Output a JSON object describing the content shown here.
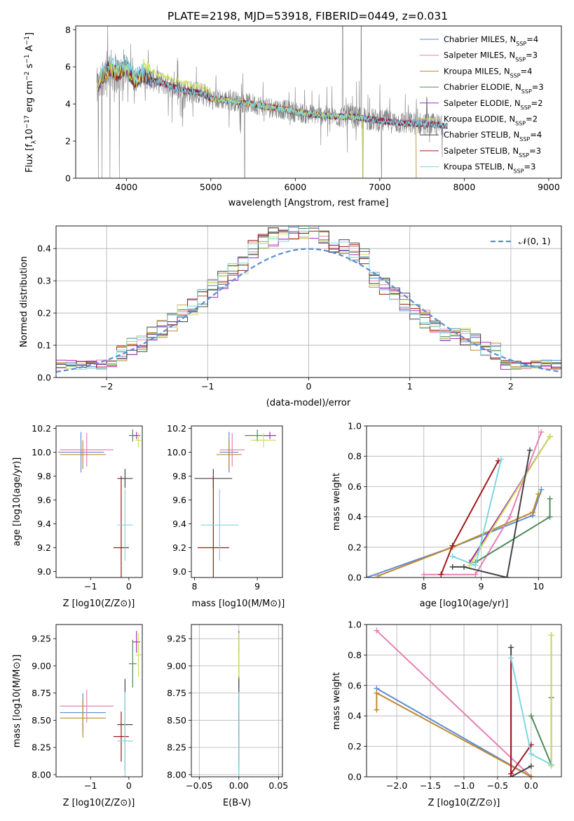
{
  "title": "PLATE=2198, MJD=53918, FIBERID=0449, z=0.031",
  "colors": [
    "#5b8bd6",
    "#e680b4",
    "#c08a2e",
    "#4f8a5a",
    "#a330b8",
    "#cfe05a",
    "#444444",
    "#a01818",
    "#7fd6e0"
  ],
  "chart_data": [
    {
      "type": "line",
      "name": "spectrum",
      "xlabel": "wavelength [Angstrom, rest frame]",
      "ylabel": "Flux [f_λ 10^-17 erg cm^-2 s^-1 A^-1]",
      "ylabel_parts": [
        "Flux [f",
        "λ",
        "10",
        "−17",
        " erg cm",
        "−2",
        " s",
        "−1",
        " A",
        "−1",
        "]"
      ],
      "xlim": [
        3400,
        9150
      ],
      "ylim": [
        0,
        8.2
      ],
      "xticks": [
        4000,
        5000,
        6000,
        7000,
        8000,
        9000
      ],
      "yticks": [
        0,
        2,
        4,
        6,
        8
      ],
      "legend_position": "upper right",
      "legend": [
        {
          "label": "Chabrier MILES, N",
          "sub": "SSP",
          "tail": "=4"
        },
        {
          "label": "Salpeter MILES, N",
          "sub": "SSP",
          "tail": "=3"
        },
        {
          "label": "Kroupa MILES, N",
          "sub": "SSP",
          "tail": "=4"
        },
        {
          "label": "Chabrier ELODIE, N",
          "sub": "SSP",
          "tail": "=3"
        },
        {
          "label": "Salpeter ELODIE, N",
          "sub": "SSP",
          "tail": "=2"
        },
        {
          "label": "Kroupa ELODIE, N",
          "sub": "SSP",
          "tail": "=2"
        },
        {
          "label": "Chabrier STELIB, N",
          "sub": "SSP",
          "tail": "=4"
        },
        {
          "label": "Salpeter STELIB, N",
          "sub": "SSP",
          "tail": "=3"
        },
        {
          "label": "Kroupa STELIB, N",
          "sub": "SSP",
          "tail": "=3"
        }
      ],
      "model_continuum": {
        "x": [
          3650,
          3700,
          3800,
          3900,
          4000,
          4100,
          4200,
          4300,
          4500,
          4700,
          4861,
          5000,
          5200,
          5500,
          5800,
          6100,
          6400,
          6700,
          7000,
          7300,
          7400,
          7600,
          7800
        ],
        "y": [
          4.8,
          5.4,
          5.9,
          5.6,
          6.0,
          5.2,
          5.6,
          5.3,
          5.0,
          4.7,
          4.6,
          4.3,
          4.2,
          4.0,
          3.75,
          3.5,
          3.35,
          3.3,
          3.1,
          2.95,
          2.95,
          2.9,
          2.8
        ]
      }
    },
    {
      "type": "step",
      "name": "residual-histogram",
      "xlabel": "(data-model)/error",
      "ylabel": "Normed distribution",
      "xlim": [
        -2.5,
        2.5
      ],
      "ylim": [
        0,
        0.47
      ],
      "xticks": [
        -2,
        -1,
        0,
        1,
        2
      ],
      "yticks": [
        0.0,
        0.1,
        0.2,
        0.3,
        0.4
      ],
      "legend": "𝒩(0, 1)",
      "legend_position": "upper right",
      "bin_width": 0.1,
      "bin_centers": [
        -2.45,
        -2.35,
        -2.25,
        -2.15,
        -2.05,
        -1.95,
        -1.85,
        -1.75,
        -1.65,
        -1.55,
        -1.45,
        -1.35,
        -1.25,
        -1.15,
        -1.05,
        -0.95,
        -0.85,
        -0.75,
        -0.65,
        -0.55,
        -0.45,
        -0.35,
        -0.25,
        -0.15,
        -0.05,
        0.05,
        0.15,
        0.25,
        0.35,
        0.45,
        0.55,
        0.65,
        0.75,
        0.85,
        0.95,
        1.05,
        1.15,
        1.25,
        1.35,
        1.45,
        1.55,
        1.65,
        1.75,
        1.85,
        1.95,
        2.05,
        2.15,
        2.25,
        2.35,
        2.45
      ],
      "reference_curve": "normal pdf, mean 0, std 1"
    },
    {
      "type": "errorbar",
      "name": "age-vs-Z",
      "xlabel": "Z [log10(Z/Z⊙)]",
      "ylabel": "age [log10(age/yr)]",
      "xlim": [
        -1.9,
        0.35
      ],
      "ylim": [
        8.95,
        10.22
      ],
      "xticks": [
        -1,
        0
      ],
      "yticks": [
        9.0,
        9.2,
        9.4,
        9.6,
        9.8,
        10.0,
        10.2
      ],
      "points": [
        {
          "x": -1.25,
          "xerr": 0.6,
          "y": 10.0,
          "yerr": 0.17
        },
        {
          "x": -1.1,
          "xerr": 0.7,
          "y": 10.02,
          "yerr": 0.14
        },
        {
          "x": -1.2,
          "xerr": 0.6,
          "y": 9.98,
          "yerr": 0.12
        },
        {
          "x": 0.1,
          "xerr": 0.1,
          "y": 10.14,
          "yerr": 0.05
        },
        {
          "x": 0.2,
          "xerr": 0.1,
          "y": 10.14,
          "yerr": 0.03
        },
        {
          "x": 0.25,
          "xerr": 0.08,
          "y": 10.1,
          "yerr": 0.06
        },
        {
          "x": -0.1,
          "xerr": 0.2,
          "y": 9.78,
          "yerr": 0.08
        },
        {
          "x": -0.2,
          "xerr": 0.2,
          "y": 9.2,
          "yerr": 0.6
        },
        {
          "x": -0.1,
          "xerr": 0.2,
          "y": 9.39,
          "yerr": 0.3
        }
      ]
    },
    {
      "type": "errorbar",
      "name": "age-vs-mass",
      "xlabel": "mass [log10(M/M⊙)]",
      "ylabel": "",
      "xlim": [
        7.95,
        9.4
      ],
      "ylim": [
        8.95,
        10.22
      ],
      "xticks": [
        8,
        9
      ],
      "yticks": [
        9.0,
        9.2,
        9.4,
        9.6,
        9.8,
        10.0,
        10.2
      ],
      "points": [
        {
          "x": 8.55,
          "xerr": 0.15,
          "y": 10.0,
          "yerr": 0.17
        },
        {
          "x": 8.6,
          "xerr": 0.2,
          "y": 10.02,
          "yerr": 0.14
        },
        {
          "x": 8.55,
          "xerr": 0.2,
          "y": 9.98,
          "yerr": 0.12
        },
        {
          "x": 9.0,
          "xerr": 0.2,
          "y": 10.14,
          "yerr": 0.05
        },
        {
          "x": 9.2,
          "xerr": 0.1,
          "y": 10.14,
          "yerr": 0.03
        },
        {
          "x": 9.1,
          "xerr": 0.2,
          "y": 10.1,
          "yerr": 0.06
        },
        {
          "x": 8.3,
          "xerr": 0.3,
          "y": 9.78,
          "yerr": 0.08
        },
        {
          "x": 8.3,
          "xerr": 0.25,
          "y": 9.2,
          "yerr": 0.6
        },
        {
          "x": 8.4,
          "xerr": 0.3,
          "y": 9.39,
          "yerr": 0.3
        }
      ]
    },
    {
      "type": "line",
      "name": "mass-weight-vs-age",
      "xlabel": "age [log10(age/yr)]",
      "ylabel": "mass weight",
      "xlim": [
        7.0,
        10.4
      ],
      "ylim": [
        0,
        1.0
      ],
      "xticks": [
        8,
        9,
        10
      ],
      "yticks": [
        0.0,
        0.2,
        0.4,
        0.6,
        0.8,
        1.0
      ],
      "series": [
        {
          "x": [
            7.0,
            8.5,
            9.9,
            10.05
          ],
          "y": [
            0.0,
            0.2,
            0.41,
            0.58
          ]
        },
        {
          "x": [
            8.0,
            8.9,
            9.5,
            10.05
          ],
          "y": [
            0.02,
            0.02,
            0.4,
            0.96
          ]
        },
        {
          "x": [
            7.2,
            8.5,
            9.9,
            10.0
          ],
          "y": [
            0.01,
            0.2,
            0.43,
            0.55
          ]
        },
        {
          "x": [
            8.9,
            10.2,
            10.2
          ],
          "y": [
            0.1,
            0.4,
            0.52
          ]
        },
        {
          "x": [
            8.8,
            10.2
          ],
          "y": [
            0.1,
            0.93
          ]
        },
        {
          "x": [
            8.8,
            10.2
          ],
          "y": [
            0.08,
            0.93
          ]
        },
        {
          "x": [
            8.5,
            8.7,
            9.45,
            9.85
          ],
          "y": [
            0.07,
            0.07,
            0.0,
            0.84
          ]
        },
        {
          "x": [
            8.3,
            8.5,
            9.3
          ],
          "y": [
            0.02,
            0.21,
            0.77
          ]
        },
        {
          "x": [
            8.5,
            8.9,
            9.35
          ],
          "y": [
            0.14,
            0.08,
            0.78
          ]
        }
      ]
    },
    {
      "type": "errorbar",
      "name": "mass-vs-Z",
      "xlabel": "Z [log10(Z/Z⊙)]",
      "ylabel": "mass [log10(M/M⊙)]",
      "xlim": [
        -1.9,
        0.35
      ],
      "ylim": [
        7.98,
        9.38
      ],
      "xticks": [
        -1,
        0
      ],
      "yticks": [
        8.0,
        8.25,
        8.5,
        8.75,
        9.0,
        9.25
      ],
      "points": [
        {
          "x": -1.2,
          "xerr": 0.6,
          "y": 8.57,
          "yerr": 0.18
        },
        {
          "x": -1.1,
          "xerr": 0.7,
          "y": 8.63,
          "yerr": 0.15
        },
        {
          "x": -1.2,
          "xerr": 0.6,
          "y": 8.52,
          "yerr": 0.18
        },
        {
          "x": 0.1,
          "xerr": 0.1,
          "y": 9.02,
          "yerr": 0.22
        },
        {
          "x": 0.2,
          "xerr": 0.1,
          "y": 9.22,
          "yerr": 0.1
        },
        {
          "x": 0.25,
          "xerr": 0.08,
          "y": 9.1,
          "yerr": 0.2
        },
        {
          "x": -0.1,
          "xerr": 0.2,
          "y": 8.46,
          "yerr": 0.42
        },
        {
          "x": -0.2,
          "xerr": 0.2,
          "y": 8.35,
          "yerr": 0.23
        },
        {
          "x": -0.1,
          "xerr": 0.2,
          "y": 8.31,
          "yerr": 0.45
        }
      ]
    },
    {
      "type": "errorbar",
      "name": "mass-vs-ebv",
      "xlabel": "E(B-V)",
      "ylabel": "",
      "xlim": [
        -0.06,
        0.055
      ],
      "ylim": [
        7.98,
        9.38
      ],
      "xticks": [
        -0.05,
        0.0,
        0.05
      ],
      "yticks": [
        8.0,
        8.25,
        8.5,
        8.75,
        9.0,
        9.25
      ],
      "points": [
        {
          "x": 0.0,
          "xerr": 0.0,
          "y": 8.57,
          "yerr": 0.18
        },
        {
          "x": 0.0,
          "xerr": 0.0,
          "y": 8.63,
          "yerr": 0.15
        },
        {
          "x": 0.0,
          "xerr": 0.0,
          "y": 8.52,
          "yerr": 0.18
        },
        {
          "x": 0.0,
          "xerr": 0.0,
          "y": 9.02,
          "yerr": 0.22
        },
        {
          "x": 0.0,
          "xerr": 0.0,
          "y": 9.22,
          "yerr": 0.1
        },
        {
          "x": 0.0,
          "xerr": 0.0,
          "y": 9.1,
          "yerr": 0.2
        },
        {
          "x": 0.0,
          "xerr": 0.0,
          "y": 8.46,
          "yerr": 0.42
        },
        {
          "x": 0.0,
          "xerr": 0.0,
          "y": 8.35,
          "yerr": 0.23
        },
        {
          "x": 0.0,
          "xerr": 0.0,
          "y": 8.31,
          "yerr": 0.45
        }
      ]
    },
    {
      "type": "line",
      "name": "mass-weight-vs-Z",
      "xlabel": "Z [log10(Z/Z⊙)]",
      "ylabel": "mass weight",
      "xlim": [
        -2.45,
        0.45
      ],
      "ylim": [
        0,
        1.0
      ],
      "xticks": [
        -2.0,
        -1.5,
        -1.0,
        -0.5,
        0.0
      ],
      "yticks": [
        0.0,
        0.2,
        0.4,
        0.6,
        0.8,
        1.0
      ],
      "series": [
        {
          "x": [
            -2.3,
            0.0
          ],
          "y": [
            0.58,
            0.0
          ]
        },
        {
          "x": [
            -2.3,
            0.0
          ],
          "y": [
            0.96,
            0.0
          ]
        },
        {
          "x": [
            -2.3,
            -2.3,
            0.0
          ],
          "y": [
            0.44,
            0.55,
            0.0
          ]
        },
        {
          "x": [
            0.0,
            0.3,
            0.3
          ],
          "y": [
            0.4,
            0.08,
            0.52
          ]
        },
        {
          "x": [
            0.3,
            0.3
          ],
          "y": [
            0.08,
            0.93
          ]
        },
        {
          "x": [
            0.3,
            0.3
          ],
          "y": [
            0.07,
            0.93
          ]
        },
        {
          "x": [
            -0.3,
            -0.3,
            0.0
          ],
          "y": [
            0.85,
            0.0,
            0.07
          ]
        },
        {
          "x": [
            -0.3,
            -0.3,
            0.0
          ],
          "y": [
            0.78,
            0.02,
            0.21
          ]
        },
        {
          "x": [
            -0.3,
            0.0,
            0.3
          ],
          "y": [
            0.78,
            0.15,
            0.08
          ]
        }
      ]
    }
  ]
}
